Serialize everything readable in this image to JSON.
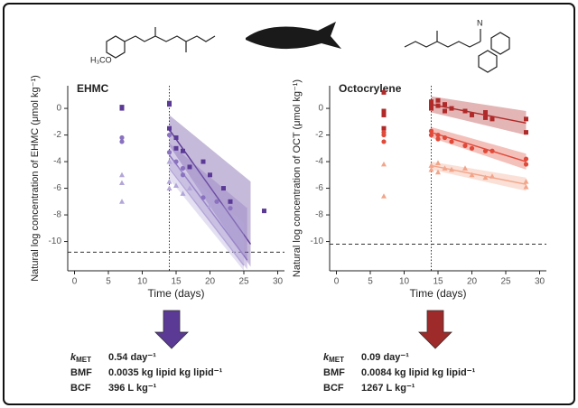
{
  "chart_data": [
    {
      "type": "scatter",
      "title": "EHMC",
      "xlabel": "Time (days)",
      "ylabel": "Natural log concentration of EHMC (μmol kg⁻¹)",
      "xlim": [
        -1,
        31
      ],
      "ylim": [
        -12.2,
        1.7
      ],
      "xticks": [
        0,
        5,
        10,
        15,
        20,
        25,
        30
      ],
      "yticks": [
        0,
        -2,
        -4,
        -6,
        -8,
        -10
      ],
      "vline": 14,
      "hline": -10.8,
      "series": [
        {
          "color": "#5b3a96",
          "marker": "square",
          "x": [
            7,
            7,
            14,
            14,
            14,
            15,
            15,
            16,
            17,
            19,
            20,
            22,
            23,
            28
          ],
          "y": [
            0,
            0.1,
            0.3,
            0.4,
            -1.5,
            -2.2,
            -3,
            -3.2,
            -4.4,
            -4,
            -5,
            -6,
            -7,
            -7.7
          ]
        },
        {
          "color": "#8a72c0",
          "marker": "circle",
          "x": [
            7,
            7,
            14,
            14,
            15,
            16,
            16,
            19,
            21,
            23
          ],
          "y": [
            -2.5,
            -2.2,
            -2,
            -3.3,
            -4,
            -4.5,
            -5,
            -6.7,
            -7,
            -7.5
          ]
        },
        {
          "color": "#b3a6d8",
          "marker": "triangle",
          "x": [
            7,
            7,
            7,
            14,
            14,
            14,
            15,
            16,
            17,
            20
          ],
          "y": [
            -5,
            -5.6,
            -7,
            -4,
            -5.5,
            -6,
            -5.8,
            -6.4,
            -6,
            -7.3
          ]
        }
      ],
      "fits": [
        {
          "color": "#5b3a96",
          "x": [
            14,
            26
          ],
          "values": [
            -1.6,
            -10.2
          ],
          "upper": [
            -0.5,
            -5.5
          ],
          "lower": [
            -2.8,
            -11.9
          ]
        },
        {
          "color": "#8a72c0",
          "x": [
            14,
            25.5
          ],
          "values": [
            -3.5,
            -11.4
          ],
          "upper": [
            -2.6,
            -7.5
          ],
          "lower": [
            -4.4,
            -12.1
          ]
        },
        {
          "color": "#b3a6d8",
          "x": [
            14,
            25
          ],
          "values": [
            -4.5,
            -11.8
          ],
          "upper": [
            -3.8,
            -8.6
          ],
          "lower": [
            -5.3,
            -12.2
          ]
        }
      ]
    },
    {
      "type": "scatter",
      "title": "Octocrylene",
      "xlabel": "Time (days)",
      "ylabel": "Natural log concentration of OCT (μmol kg⁻¹)",
      "xlim": [
        -1,
        31
      ],
      "ylim": [
        -12.2,
        1.7
      ],
      "xticks": [
        0,
        5,
        10,
        15,
        20,
        25,
        30
      ],
      "yticks": [
        0,
        -2,
        -4,
        -6,
        -8,
        -10
      ],
      "vline": 14,
      "hline": -10.2,
      "series": [
        {
          "color": "#b02a2a",
          "marker": "square",
          "x": [
            7,
            7,
            7,
            7,
            14,
            14,
            14,
            15,
            15,
            16,
            16,
            17,
            19,
            20,
            22,
            22,
            23,
            28,
            28
          ],
          "y": [
            1.2,
            -0.2,
            -0.5,
            -1.5,
            0.5,
            0.3,
            0,
            0.2,
            0.6,
            0.3,
            -0.2,
            0,
            -0.2,
            -0.5,
            -0.3,
            -0.7,
            -0.8,
            -0.8,
            -1.8
          ]
        },
        {
          "color": "#e04a3a",
          "marker": "circle",
          "x": [
            7,
            7,
            7,
            14,
            14,
            15,
            15,
            16,
            17,
            19,
            20,
            22,
            23,
            28,
            28
          ],
          "y": [
            -1.8,
            -2,
            -2.5,
            -1.7,
            -2,
            -2,
            -2.3,
            -2.2,
            -2.5,
            -2.8,
            -3,
            -3.2,
            -3.2,
            -3.8,
            -4.2
          ]
        },
        {
          "color": "#f2a58a",
          "marker": "triangle",
          "x": [
            7,
            7,
            14,
            14,
            15,
            15,
            16,
            17,
            19,
            20,
            22,
            23,
            28,
            28
          ],
          "y": [
            -4.2,
            -6.6,
            -4.3,
            -4.6,
            -4.1,
            -4.8,
            -4.5,
            -4.6,
            -4.5,
            -5,
            -5.2,
            -5.1,
            -5.5,
            -5.9
          ]
        }
      ],
      "fits": [
        {
          "color": "#b02a2a",
          "x": [
            14,
            28
          ],
          "values": [
            0.3,
            -1.1
          ],
          "upper": [
            0.9,
            -0.2
          ],
          "lower": [
            -0.3,
            -2
          ]
        },
        {
          "color": "#e04a3a",
          "x": [
            14,
            28
          ],
          "values": [
            -1.8,
            -4
          ],
          "upper": [
            -1.4,
            -3.4
          ],
          "lower": [
            -2.2,
            -4.6
          ]
        },
        {
          "color": "#f2a58a",
          "x": [
            14,
            28
          ],
          "values": [
            -4.3,
            -5.7
          ],
          "upper": [
            -4,
            -5.2
          ],
          "lower": [
            -4.6,
            -6.2
          ]
        }
      ]
    }
  ],
  "structures": {
    "left": "H₃CO",
    "right": "N"
  },
  "summary": [
    {
      "arrow_color": "#5b3a96",
      "rows": [
        {
          "k": "k",
          "sub": "MET",
          "value": "0.54 day⁻¹"
        },
        {
          "k": "BMF",
          "value": "0.0035 kg lipid kg lipid⁻¹"
        },
        {
          "k": "BCF",
          "value": "396 L kg⁻¹"
        }
      ]
    },
    {
      "arrow_color": "#9e2a2a",
      "rows": [
        {
          "k": "k",
          "sub": "MET",
          "value": "0.09  day⁻¹"
        },
        {
          "k": "BMF",
          "value": "0.0084 kg lipid kg lipid⁻¹"
        },
        {
          "k": "BCF",
          "value": "1267 L kg⁻¹"
        }
      ]
    }
  ]
}
